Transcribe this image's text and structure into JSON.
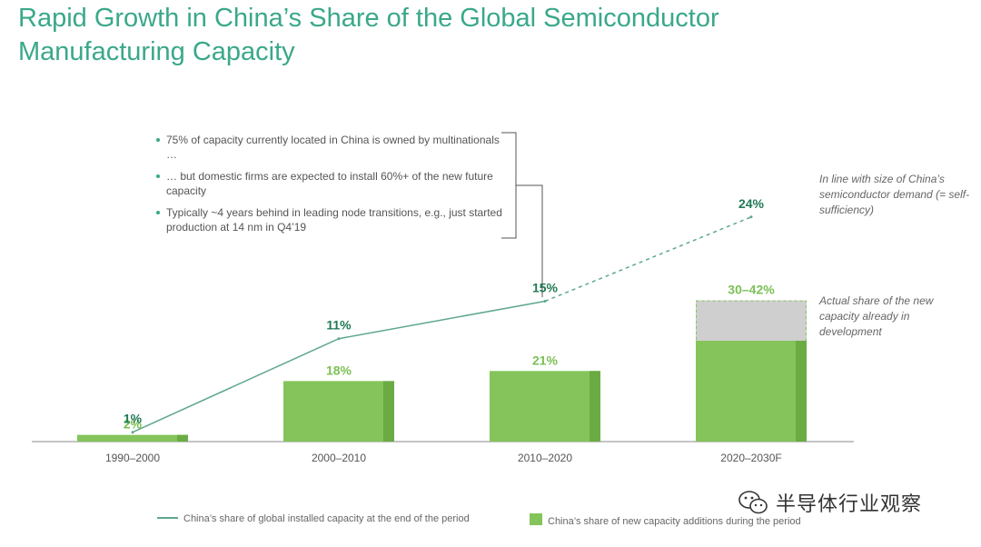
{
  "title": {
    "line1": "Rapid Growth in China’s Share of the Global Semiconductor",
    "line2": "Manufacturing Capacity"
  },
  "callout": {
    "bullets": [
      "75% of capacity currently located in China is owned by multinationals …",
      "… but domestic firms are expected to install 60%+ of the new future capacity",
      "Typically ~4 years behind in leading node transitions, e.g., just started production at 14 nm in Q4’19"
    ]
  },
  "notes": {
    "top": "In line with size of China’s semiconductor demand (= self-sufficiency)",
    "mid": "Actual share of the new capacity already in development"
  },
  "watermark": {
    "text": "半导体行业观察",
    "icon": "wechat-icon"
  },
  "colors": {
    "title": "#3aa88a",
    "bar": "#84c45a",
    "bar_side": "#6aab44",
    "bar_label": "#7cc055",
    "line": "#5ea88c",
    "line_label": "#217a55",
    "range_fill": "#cfcfcf",
    "axis": "#8a8a8a"
  },
  "chart_data": {
    "type": "bar",
    "categories": [
      "1990–2000",
      "2000–2010",
      "2010–2020",
      "2020–2030F"
    ],
    "series": [
      {
        "name": "China’s share of new capacity additions during the period",
        "type": "bar",
        "values": [
          2,
          18,
          21,
          30
        ],
        "range_high": [
          null,
          null,
          null,
          42
        ],
        "labels": [
          "2%",
          "18%",
          "21%",
          "30–42%"
        ]
      },
      {
        "name": "China’s share of global installed capacity at the end of the period",
        "type": "line",
        "values": [
          1,
          11,
          15,
          24
        ],
        "labels": [
          "1%",
          "11%",
          "15%",
          "24%"
        ],
        "projected_last": true
      }
    ],
    "bar_ylim": [
      0,
      45
    ],
    "line_ylim": [
      0,
      30
    ],
    "legend": "bottom"
  }
}
